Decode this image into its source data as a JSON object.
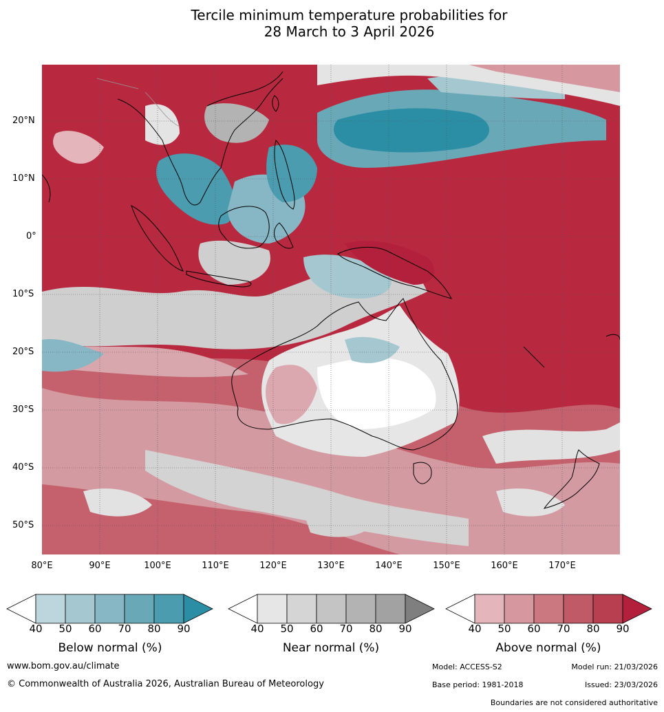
{
  "title_line1": "Tercile minimum temperature probabilities for",
  "title_line2": "28 March to 3 April 2026",
  "map": {
    "lat_labels": [
      "20°N",
      "10°N",
      "0°",
      "10°S",
      "20°S",
      "30°S",
      "40°S",
      "50°S"
    ],
    "lon_labels": [
      "80°E",
      "90°E",
      "100°E",
      "110°E",
      "120°E",
      "130°E",
      "140°E",
      "150°E",
      "160°E",
      "170°E"
    ]
  },
  "legend": {
    "ticks": [
      "40",
      "50",
      "60",
      "70",
      "80",
      "90"
    ],
    "below": {
      "label": "Below normal (%)",
      "colors": [
        "#ffffff",
        "#bdd5dc",
        "#a5c7cf",
        "#87b7c4",
        "#69a9b7",
        "#4a9cae",
        "#2b8ea4"
      ]
    },
    "near": {
      "label": "Near normal (%)",
      "colors": [
        "#ffffff",
        "#e6e6e6",
        "#d5d5d5",
        "#c4c4c4",
        "#b3b3b3",
        "#a2a2a2",
        "#7f7f7f"
      ]
    },
    "above": {
      "label": "Above normal (%)",
      "colors": [
        "#ffffff",
        "#e4b6bc",
        "#d7979f",
        "#cb7880",
        "#c05a66",
        "#b83f4f",
        "#b2203c"
      ]
    }
  },
  "footer": {
    "website": "www.bom.gov.au/climate",
    "copyright": "© Commonwealth of Australia 2026, Australian Bureau of Meteorology",
    "model": "Model: ACCESS-S2",
    "model_run": "Model run: 21/03/2026",
    "base_period": "Base period: 1981-2018",
    "issued": "Issued: 23/03/2026",
    "disclaimer": "Boundaries are not considered authoritative"
  }
}
